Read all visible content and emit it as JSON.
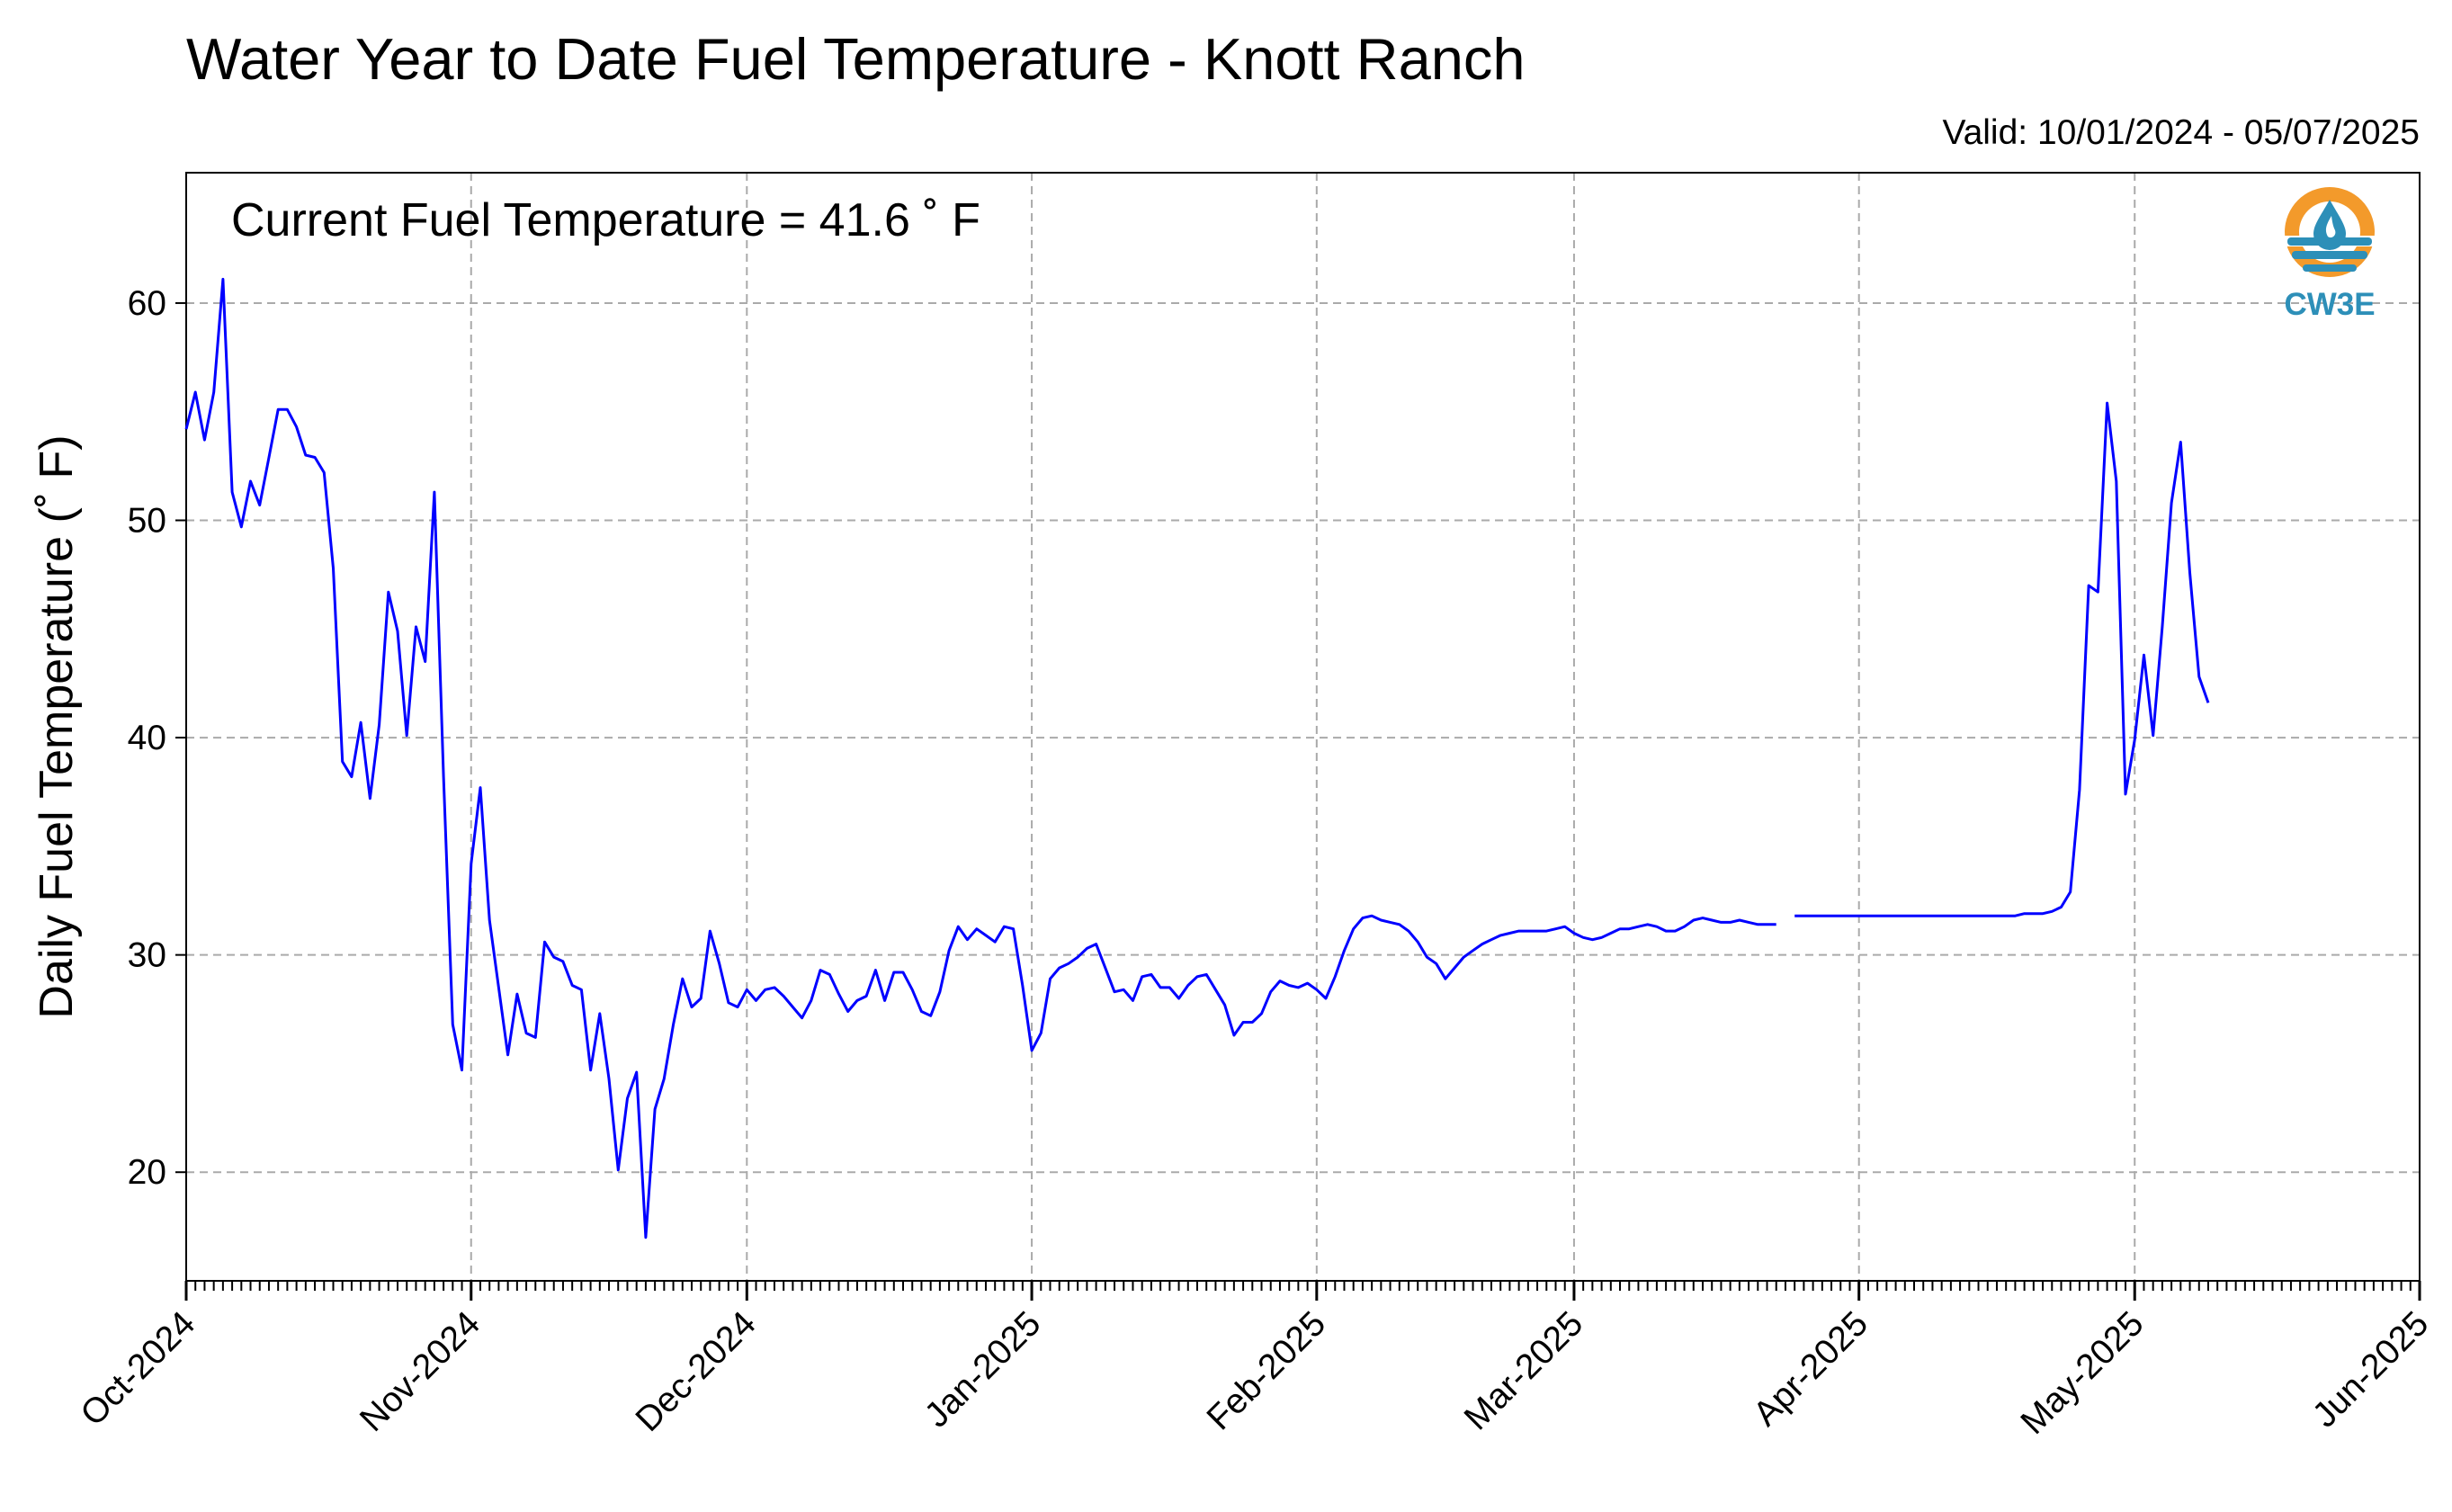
{
  "chart_data": {
    "type": "line",
    "title": "Water Year to Date Fuel Temperature - Knott Ranch",
    "subtitle": "Valid: 10/01/2024 - 05/07/2025",
    "annotation": "Current Fuel Temperature = 41.6 ˚ F",
    "ylabel": "Daily Fuel Temperature (˚ F)",
    "xlabel": "",
    "xlim": [
      "2024-10-01",
      "2025-06-01"
    ],
    "ylim": [
      15,
      66
    ],
    "yticks": [
      20,
      30,
      40,
      50,
      60
    ],
    "xticks": [
      "Oct-2024",
      "Nov-2024",
      "Dec-2024",
      "Jan-2025",
      "Feb-2025",
      "Mar-2025",
      "Apr-2025",
      "May-2025",
      "Jun-2025"
    ],
    "grid": true,
    "line_color": "#0000ff",
    "logo_text": "CW3E",
    "logo_colors": {
      "orange": "#f39a2b",
      "blue": "#2d8fb8"
    },
    "series": [
      {
        "start": "2024-10-01",
        "values": [
          54.2,
          55.9,
          53.7,
          55.9,
          61.1,
          51.3,
          49.7,
          51.8,
          50.7,
          52.9,
          55.1,
          55.1,
          54.3,
          53.0,
          52.9,
          52.2,
          47.8,
          38.9,
          38.2,
          40.7,
          37.2,
          40.6,
          46.7,
          44.9,
          40.1,
          45.1,
          43.5,
          51.3,
          38.2,
          26.8,
          24.7,
          34.2,
          37.7,
          31.6,
          28.5,
          25.4,
          28.2,
          26.4,
          26.2,
          30.6,
          29.9,
          29.7,
          28.6,
          28.4,
          24.7,
          27.3,
          24.3,
          20.1,
          23.4,
          24.6,
          17.0,
          22.9,
          24.3,
          26.8,
          28.9,
          27.6,
          28.0,
          31.1,
          29.6,
          27.8,
          27.6,
          28.4,
          27.9,
          28.4,
          28.5,
          28.1,
          27.6,
          27.1,
          27.9,
          29.3,
          29.1,
          28.2,
          27.4,
          27.9,
          28.1,
          29.3,
          27.9,
          29.2,
          29.2,
          28.4,
          27.4,
          27.2,
          28.3,
          30.2,
          31.3,
          30.7,
          31.2,
          30.9,
          30.6,
          31.3,
          31.2,
          28.6,
          25.6,
          26.4,
          28.9,
          29.4,
          29.6,
          29.9,
          30.3,
          30.5,
          29.4,
          28.3,
          28.4,
          27.9,
          29.0,
          29.1,
          28.5,
          28.5,
          28.0,
          28.6,
          29.0,
          29.1,
          28.4,
          27.7,
          26.3,
          26.9,
          26.9,
          27.3,
          28.3,
          28.8,
          28.6,
          28.5,
          28.7,
          28.4,
          28.0,
          29.0,
          30.2,
          31.2,
          31.7,
          31.8,
          31.6,
          31.5,
          31.4,
          31.1,
          30.6,
          29.9,
          29.6,
          28.9,
          29.4,
          29.9,
          30.2,
          30.5,
          30.7,
          30.9,
          31.0,
          31.1,
          31.1,
          31.1,
          31.1,
          31.2,
          31.3,
          31.0,
          30.8,
          30.7,
          30.8,
          31.0,
          31.2,
          31.2,
          31.3,
          31.4,
          31.3,
          31.1,
          31.1,
          31.3,
          31.6,
          31.7,
          31.6,
          31.5,
          31.5,
          31.6,
          31.5,
          31.4,
          31.4,
          31.4,
          null,
          31.8,
          31.8,
          31.8,
          31.8,
          31.8,
          31.8,
          31.8,
          31.8,
          31.8,
          31.8,
          31.8,
          31.8,
          31.8,
          31.8,
          31.8,
          31.8,
          31.8,
          31.8,
          31.8,
          31.8,
          31.8,
          31.8,
          31.8,
          31.8,
          31.8,
          31.9,
          31.9,
          31.9,
          32.0,
          32.2,
          32.9,
          37.6,
          47.0,
          46.7,
          55.4,
          51.8,
          37.4,
          39.9,
          43.8,
          40.1,
          45.1,
          50.8,
          53.6,
          47.6,
          42.8,
          41.6
        ]
      }
    ]
  }
}
